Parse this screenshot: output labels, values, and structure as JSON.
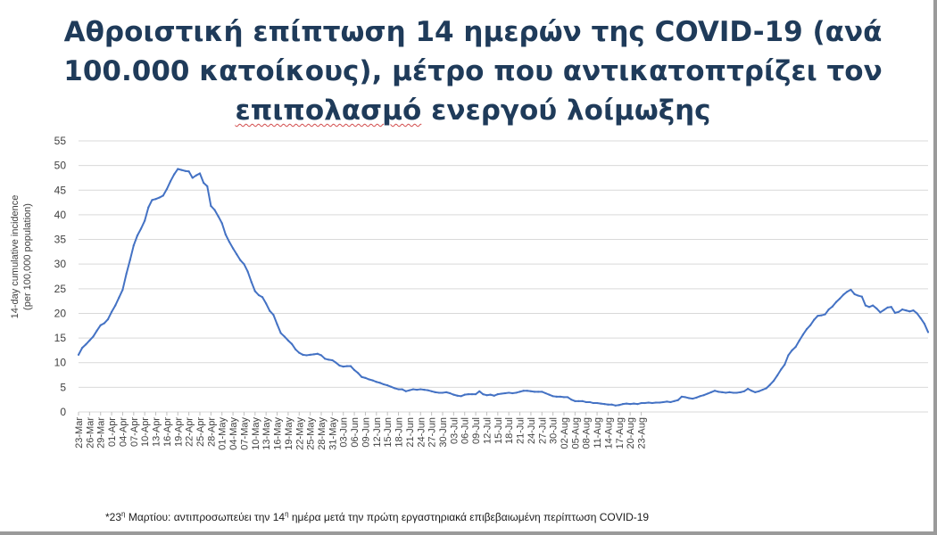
{
  "title": {
    "line1": "Αθροιστική επίπτωση 14 ημερών της COVID-19 (ανά",
    "line2": "100.000 κατοίκους), μέτρο που αντικατοπτρίζει τον",
    "line3_underlined": "επιπολασμό",
    "line3_rest": " ενεργού λοίμωξης"
  },
  "footnote": {
    "prefix": "*23",
    "sup1": "η",
    "middle": " Μαρτίου: αντιπροσωπεύει την 14",
    "sup2": "η",
    "suffix": " ημέρα μετά την πρώτη εργαστηριακά επιβεβαιωμένη περίπτωση COVID-19"
  },
  "colors": {
    "line": "#4472c4",
    "title": "#1f3b5a",
    "grid": "#d9d9d9",
    "frame": "#9a9a9a"
  },
  "chart_data": {
    "type": "line",
    "ylabel_line1": "14-day cumulative incidence",
    "ylabel_line2": "(per 100,000 population)",
    "ylim": [
      0,
      55
    ],
    "yticks": [
      0,
      5,
      10,
      15,
      20,
      25,
      30,
      35,
      40,
      45,
      50,
      55
    ],
    "grid": true,
    "xlabels": [
      "23-Mar",
      "26-Mar",
      "29-Mar",
      "01-Apr",
      "04-Apr",
      "07-Apr",
      "10-Apr",
      "13-Apr",
      "16-Apr",
      "19-Apr",
      "22-Apr",
      "25-Apr",
      "28-Apr",
      "01-May",
      "04-May",
      "07-May",
      "10-May",
      "13-May",
      "16-May",
      "19-May",
      "22-May",
      "25-May",
      "28-May",
      "31-May",
      "03-Jun",
      "06-Jun",
      "09-Jun",
      "12-Jun",
      "15-Jun",
      "18-Jun",
      "21-Jun",
      "24-Jun",
      "27-Jun",
      "30-Jun",
      "03-Jul",
      "06-Jul",
      "09-Jul",
      "12-Jul",
      "15-Jul",
      "18-Jul",
      "21-Jul",
      "24-Jul",
      "27-Jul",
      "30-Jul",
      "02-Aug",
      "05-Aug",
      "08-Aug",
      "11-Aug",
      "14-Aug",
      "17-Aug",
      "20-Aug",
      "23-Aug"
    ],
    "series": [
      {
        "values": [
          11.6,
          13.0,
          13.7,
          14.5,
          15.3,
          16.5,
          17.6,
          18.0,
          18.8,
          20.3,
          21.6,
          23.2,
          24.8,
          28.0,
          30.8,
          33.8,
          35.8,
          37.2,
          38.8,
          41.5,
          43.0,
          43.2,
          43.5,
          43.9,
          45.2,
          46.8,
          48.2,
          49.3,
          49.1,
          48.9,
          48.8,
          47.5,
          48.0,
          48.4,
          46.5,
          45.8,
          41.8,
          41.0,
          39.7,
          38.3,
          36.0,
          34.5,
          33.2,
          32.0,
          30.8,
          30.0,
          28.5,
          26.4,
          24.5,
          23.7,
          23.3,
          22.0,
          20.5,
          19.7,
          17.8,
          16.0,
          15.3,
          14.5,
          13.8,
          12.7,
          12.0,
          11.6,
          11.5,
          11.6,
          11.7,
          11.8,
          11.5,
          10.8,
          10.6,
          10.5,
          10.0,
          9.4,
          9.2,
          9.3,
          9.3,
          8.5,
          7.9,
          7.1,
          6.9,
          6.6,
          6.4,
          6.1,
          5.9,
          5.6,
          5.4,
          5.1,
          4.8,
          4.6,
          4.6,
          4.2,
          4.4,
          4.6,
          4.5,
          4.6,
          4.5,
          4.4,
          4.2,
          4.0,
          3.9,
          3.9,
          4.0,
          3.8,
          3.5,
          3.3,
          3.2,
          3.5,
          3.6,
          3.6,
          3.6,
          4.2,
          3.6,
          3.4,
          3.5,
          3.3,
          3.6,
          3.7,
          3.8,
          3.9,
          3.8,
          3.9,
          4.1,
          4.3,
          4.3,
          4.2,
          4.1,
          4.1,
          4.1,
          3.8,
          3.5,
          3.2,
          3.1,
          3.1,
          3.0,
          3.0,
          2.5,
          2.2,
          2.2,
          2.2,
          2.0,
          2.0,
          1.8,
          1.8,
          1.7,
          1.6,
          1.5,
          1.5,
          1.3,
          1.4,
          1.6,
          1.7,
          1.6,
          1.7,
          1.6,
          1.8,
          1.8,
          1.9,
          1.8,
          1.9,
          1.9,
          2.0,
          2.1,
          2.0,
          2.2,
          2.4,
          3.1,
          3.0,
          2.8,
          2.7,
          2.9,
          3.2,
          3.4,
          3.7,
          4.0,
          4.3,
          4.1,
          4.0,
          3.9,
          4.0,
          3.9,
          3.9,
          4.0,
          4.2,
          4.7,
          4.3,
          4.0,
          4.2,
          4.5,
          4.8,
          5.5,
          6.3,
          7.4,
          8.6,
          9.6,
          11.5,
          12.5,
          13.2,
          14.5,
          15.7,
          16.8,
          17.6,
          18.7,
          19.5,
          19.6,
          19.8,
          20.8,
          21.4,
          22.3,
          23.0,
          23.8,
          24.4,
          24.8,
          23.9,
          23.6,
          23.4,
          21.6,
          21.3,
          21.6,
          21.0,
          20.2,
          20.7,
          21.2,
          21.3,
          20.1,
          20.3,
          20.8,
          20.6,
          20.4,
          20.6,
          20.0,
          19.0,
          17.9,
          16.2
        ]
      }
    ]
  }
}
